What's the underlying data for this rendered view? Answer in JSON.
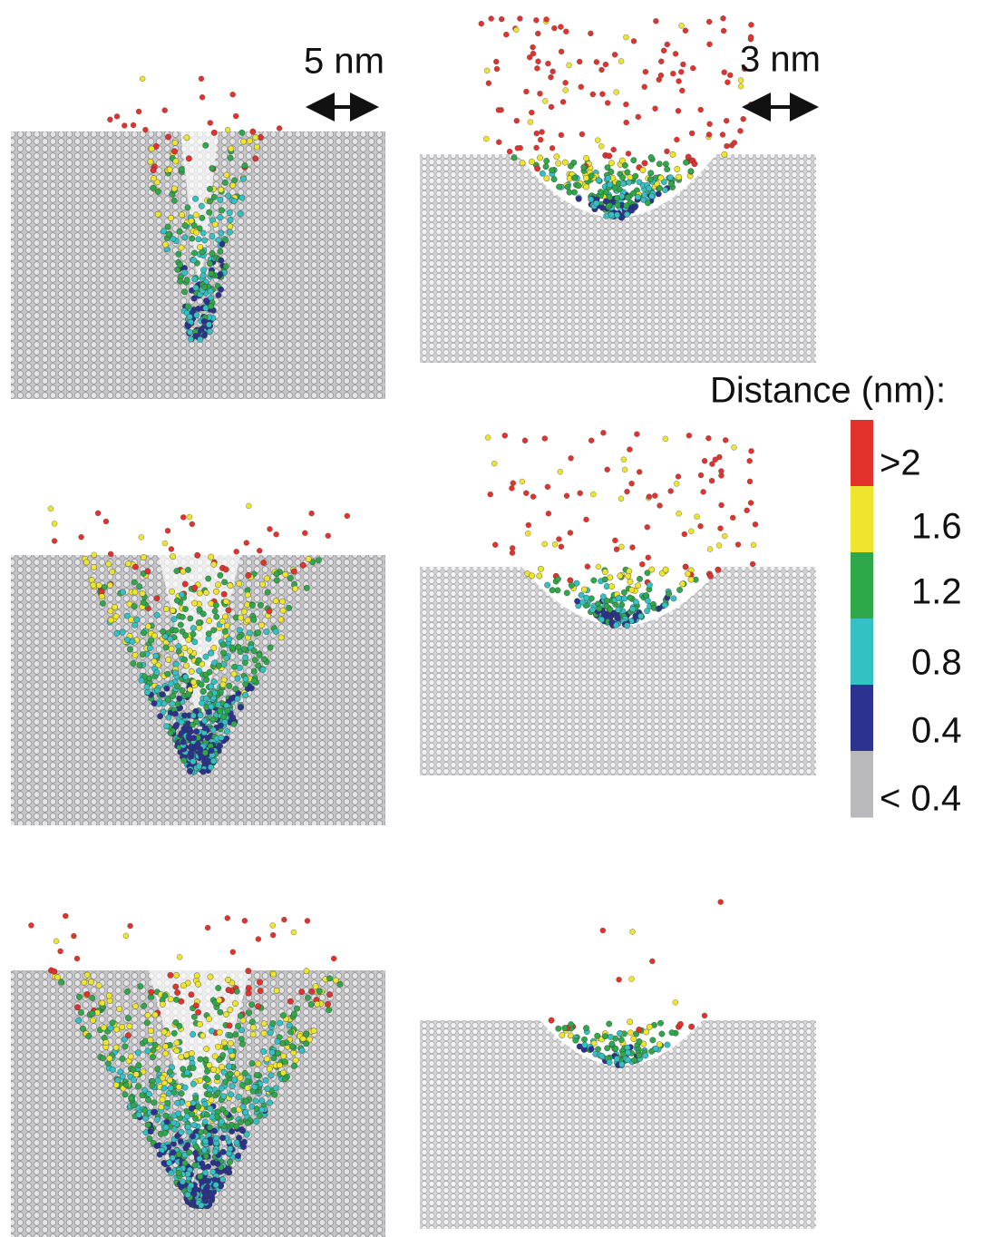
{
  "scale_bars": [
    "5 nm",
    "3 nm"
  ],
  "legend": {
    "title": "Distance (nm):",
    "items": [
      {
        "label": ">2",
        "color": "#e3312b"
      },
      {
        "label": "1.6",
        "color": "#eee52c"
      },
      {
        "label": "1.2",
        "color": "#2fa84a"
      },
      {
        "label": "0.8",
        "color": "#33c1c3"
      },
      {
        "label": "0.4",
        "color": "#2b3290"
      },
      {
        "label": "< 0.4",
        "color": "#b9b9bc"
      }
    ]
  }
}
